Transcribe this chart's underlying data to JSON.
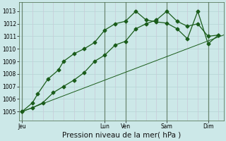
{
  "xlabel": "Pression niveau de la mer( hPa )",
  "bg_color": "#cce8e8",
  "grid_color_h": "#b8d8d8",
  "grid_color_v": "#c8c8d8",
  "line_color": "#1a5c1a",
  "vline_color": "#446644",
  "ylim": [
    1004.3,
    1013.7
  ],
  "xlim": [
    -0.3,
    19.5
  ],
  "yticks": [
    1005,
    1006,
    1007,
    1008,
    1009,
    1010,
    1011,
    1012,
    1013
  ],
  "day_labels": [
    "Jeu",
    "Lun",
    "Ven",
    "Sam",
    "Dim"
  ],
  "day_positions": [
    0,
    8,
    10,
    14,
    18
  ],
  "line1_x": [
    0,
    1,
    1.5,
    2.5,
    3.5,
    4,
    5,
    6,
    7,
    8,
    9,
    10,
    11,
    12,
    13,
    14,
    15,
    16,
    17,
    18,
    19
  ],
  "line1_y": [
    1005.0,
    1005.7,
    1006.4,
    1007.6,
    1008.3,
    1009.0,
    1009.6,
    1010.0,
    1010.5,
    1011.5,
    1012.0,
    1012.2,
    1013.0,
    1012.3,
    1012.15,
    1012.05,
    1011.6,
    1010.8,
    1013.0,
    1010.4,
    1011.1
  ],
  "line2_x": [
    0,
    1,
    2,
    3,
    4,
    5,
    6,
    7,
    8,
    9,
    10,
    11,
    12,
    13,
    14,
    15,
    16,
    17,
    18,
    19
  ],
  "line2_y": [
    1005.0,
    1005.3,
    1005.7,
    1006.5,
    1007.0,
    1007.5,
    1008.1,
    1009.0,
    1009.5,
    1010.3,
    1010.6,
    1011.6,
    1012.0,
    1012.3,
    1013.0,
    1012.2,
    1011.8,
    1012.0,
    1011.0,
    1011.1
  ],
  "line3_x": [
    0,
    19.5
  ],
  "line3_y": [
    1005.0,
    1011.1
  ],
  "marker_size": 2.5,
  "linewidth": 0.9,
  "xlabel_fontsize": 7.5,
  "tick_fontsize": 5.5
}
